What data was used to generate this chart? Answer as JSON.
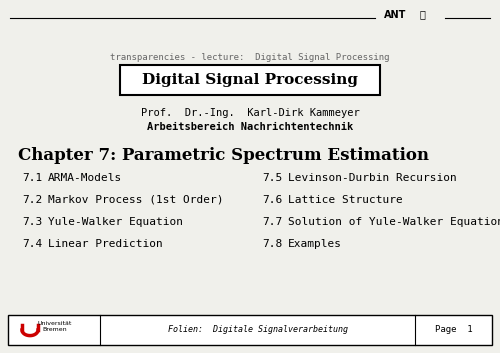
{
  "bg_color": "#f0f0eb",
  "subtitle": "transparencies - lecture:  Digital Signal Processing",
  "box_title": "Digital Signal Processing",
  "prof_line1": "Prof.  Dr.-Ing.  Karl-Dirk Kammeyer",
  "prof_line2": "Arbeitsbereich Nachrichtentechnik",
  "chapter_title": "Chapter 7: Parametric Spectrum Estimation",
  "items_left": [
    [
      "7.1",
      "ARMA-Models"
    ],
    [
      "7.2",
      "Markov Process (1st Order)"
    ],
    [
      "7.3",
      "Yule-Walker Equation"
    ],
    [
      "7.4",
      "Linear Prediction"
    ]
  ],
  "items_right": [
    [
      "7.5",
      "Levinson-Durbin Recursion"
    ],
    [
      "7.6",
      "Lattice Structure"
    ],
    [
      "7.7",
      "Solution of Yule-Walker Equation"
    ],
    [
      "7.8",
      "Examples"
    ]
  ],
  "footer_text": "Folien:  Digitale Signalverarbeitung",
  "footer_page": "Page  1"
}
